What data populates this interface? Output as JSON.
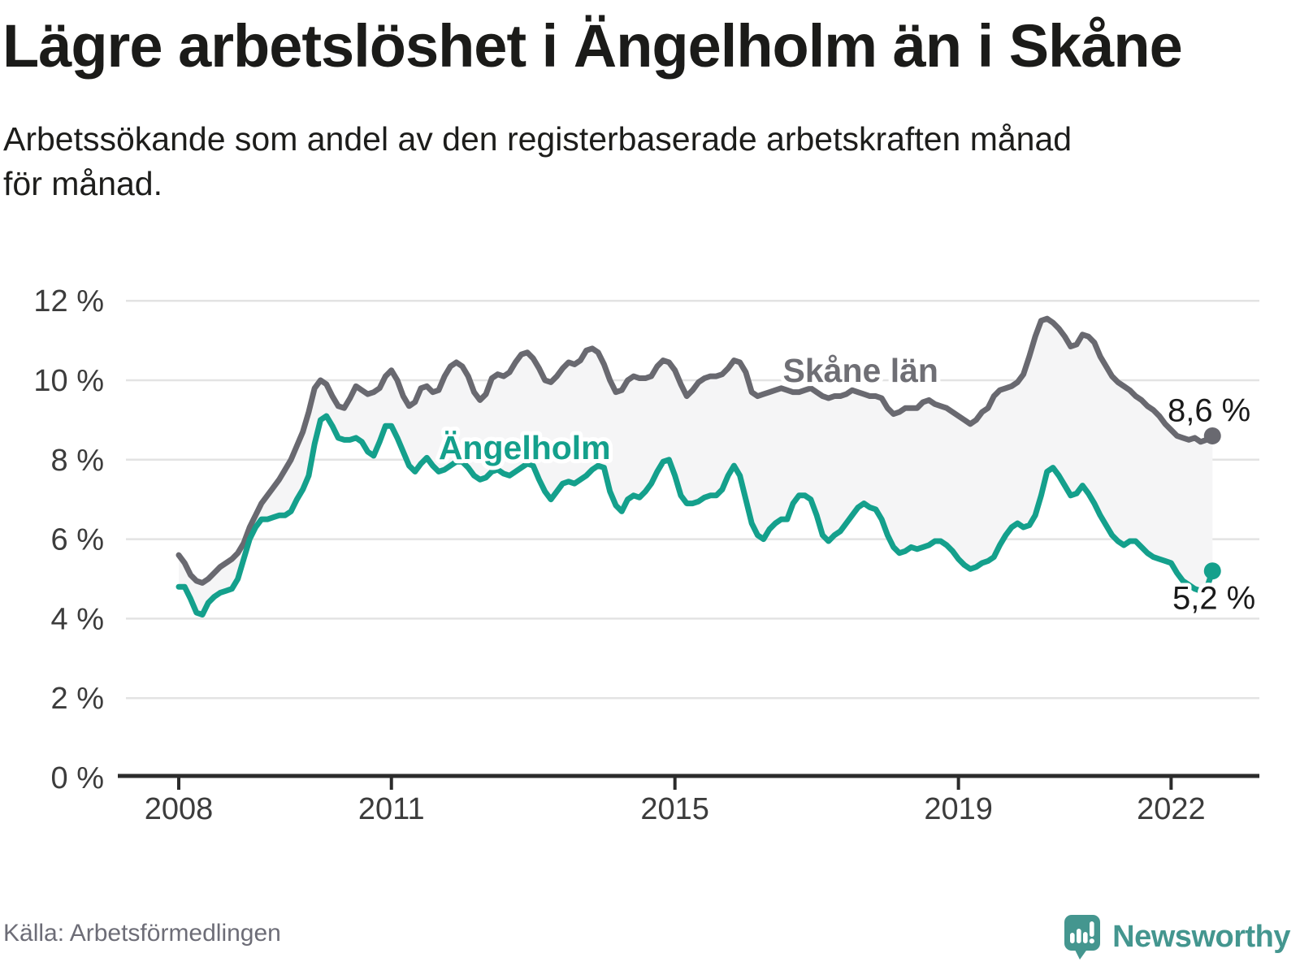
{
  "title": "Lägre arbetslöshet i Ängelholm än i Skåne",
  "subtitle_lines": [
    "Arbetssökande som andel av den registerbaserade arbetskraften månad",
    "för månad."
  ],
  "source": "Källa: Arbetsförmedlingen",
  "logo": {
    "text": "Newsworthy",
    "color": "#44968f"
  },
  "colors": {
    "skane_line": "#696970",
    "skane_label": "#6f6f75",
    "angelholm_line": "#14a08c",
    "area_fill": "#f5f5f6",
    "gridline": "#e3e3e3",
    "axis": "#2b2b2b",
    "tick_text": "#3c3c3c",
    "end_label_text": "#1a1a1a"
  },
  "chart_data": {
    "type": "line",
    "title": "Lägre arbetslöshet i Ängelholm än i Skåne",
    "xlabel": "",
    "ylabel": "",
    "unit": "%",
    "x_start_month": "2008-01",
    "x_end_month": "2022-08",
    "months_per_point": 1,
    "ylim": [
      0,
      12
    ],
    "y_ticks": [
      0,
      2,
      4,
      6,
      8,
      10,
      12
    ],
    "x_ticks": [
      2008,
      2011,
      2015,
      2019,
      2022
    ],
    "grid": true,
    "area_between_series": true,
    "series": [
      {
        "name": "Skåne län",
        "end_label": "8,6 %",
        "label_anchor": {
          "year": 2017.62,
          "value": 10.25
        },
        "values": [
          5.6,
          5.4,
          5.1,
          4.95,
          4.9,
          5.0,
          5.15,
          5.3,
          5.4,
          5.5,
          5.65,
          5.9,
          6.3,
          6.6,
          6.9,
          7.1,
          7.3,
          7.5,
          7.75,
          8.0,
          8.35,
          8.7,
          9.2,
          9.8,
          10.0,
          9.9,
          9.6,
          9.35,
          9.3,
          9.55,
          9.85,
          9.75,
          9.65,
          9.7,
          9.8,
          10.1,
          10.25,
          10.0,
          9.6,
          9.35,
          9.45,
          9.8,
          9.85,
          9.7,
          9.75,
          10.1,
          10.35,
          10.45,
          10.35,
          10.1,
          9.7,
          9.5,
          9.65,
          10.05,
          10.15,
          10.1,
          10.2,
          10.45,
          10.65,
          10.7,
          10.55,
          10.3,
          10.0,
          9.95,
          10.1,
          10.3,
          10.45,
          10.4,
          10.5,
          10.75,
          10.8,
          10.7,
          10.4,
          10.0,
          9.7,
          9.75,
          10.0,
          10.1,
          10.05,
          10.05,
          10.1,
          10.35,
          10.5,
          10.45,
          10.25,
          9.9,
          9.6,
          9.75,
          9.95,
          10.05,
          10.1,
          10.1,
          10.15,
          10.3,
          10.5,
          10.45,
          10.2,
          9.7,
          9.6,
          9.65,
          9.7,
          9.75,
          9.8,
          9.75,
          9.7,
          9.7,
          9.75,
          9.8,
          9.7,
          9.6,
          9.55,
          9.6,
          9.6,
          9.65,
          9.75,
          9.7,
          9.65,
          9.6,
          9.6,
          9.55,
          9.3,
          9.15,
          9.2,
          9.3,
          9.3,
          9.3,
          9.45,
          9.5,
          9.4,
          9.35,
          9.3,
          9.2,
          9.1,
          9.0,
          8.9,
          9.0,
          9.2,
          9.3,
          9.6,
          9.75,
          9.8,
          9.85,
          9.95,
          10.15,
          10.6,
          11.1,
          11.5,
          11.55,
          11.45,
          11.3,
          11.1,
          10.85,
          10.9,
          11.15,
          11.1,
          10.95,
          10.6,
          10.35,
          10.1,
          9.95,
          9.85,
          9.75,
          9.6,
          9.5,
          9.35,
          9.25,
          9.1,
          8.9,
          8.75,
          8.6,
          8.55,
          8.5,
          8.55,
          8.45,
          8.5,
          8.6
        ]
      },
      {
        "name": "Ängelholm",
        "end_label": "5,2 %",
        "label_anchor": {
          "year": 2012.88,
          "value": 8.3
        },
        "values": [
          4.8,
          4.8,
          4.5,
          4.15,
          4.1,
          4.4,
          4.55,
          4.65,
          4.7,
          4.75,
          5.0,
          5.5,
          6.0,
          6.3,
          6.5,
          6.5,
          6.55,
          6.6,
          6.6,
          6.7,
          7.0,
          7.25,
          7.6,
          8.4,
          9.0,
          9.1,
          8.85,
          8.55,
          8.5,
          8.5,
          8.55,
          8.45,
          8.2,
          8.1,
          8.45,
          8.85,
          8.85,
          8.55,
          8.2,
          7.85,
          7.7,
          7.9,
          8.05,
          7.85,
          7.7,
          7.75,
          7.85,
          7.95,
          7.95,
          7.8,
          7.6,
          7.5,
          7.55,
          7.7,
          7.75,
          7.65,
          7.6,
          7.7,
          7.8,
          7.9,
          7.85,
          7.5,
          7.2,
          7.0,
          7.2,
          7.4,
          7.45,
          7.4,
          7.5,
          7.6,
          7.75,
          7.85,
          7.8,
          7.2,
          6.85,
          6.7,
          7.0,
          7.1,
          7.05,
          7.2,
          7.4,
          7.7,
          7.95,
          8.0,
          7.6,
          7.1,
          6.9,
          6.9,
          6.95,
          7.05,
          7.1,
          7.1,
          7.25,
          7.6,
          7.85,
          7.6,
          7.0,
          6.4,
          6.1,
          6.0,
          6.25,
          6.4,
          6.5,
          6.5,
          6.9,
          7.1,
          7.1,
          7.0,
          6.6,
          6.1,
          5.95,
          6.1,
          6.2,
          6.4,
          6.6,
          6.8,
          6.9,
          6.8,
          6.75,
          6.5,
          6.1,
          5.8,
          5.65,
          5.7,
          5.8,
          5.75,
          5.8,
          5.85,
          5.95,
          5.95,
          5.85,
          5.7,
          5.5,
          5.35,
          5.25,
          5.3,
          5.4,
          5.45,
          5.55,
          5.85,
          6.1,
          6.3,
          6.4,
          6.3,
          6.35,
          6.6,
          7.1,
          7.7,
          7.8,
          7.6,
          7.35,
          7.1,
          7.15,
          7.35,
          7.15,
          6.9,
          6.6,
          6.35,
          6.1,
          5.95,
          5.85,
          5.95,
          5.95,
          5.8,
          5.65,
          5.55,
          5.5,
          5.45,
          5.4,
          5.15,
          4.95,
          4.85,
          4.75,
          4.7,
          4.75,
          5.2
        ]
      }
    ]
  }
}
